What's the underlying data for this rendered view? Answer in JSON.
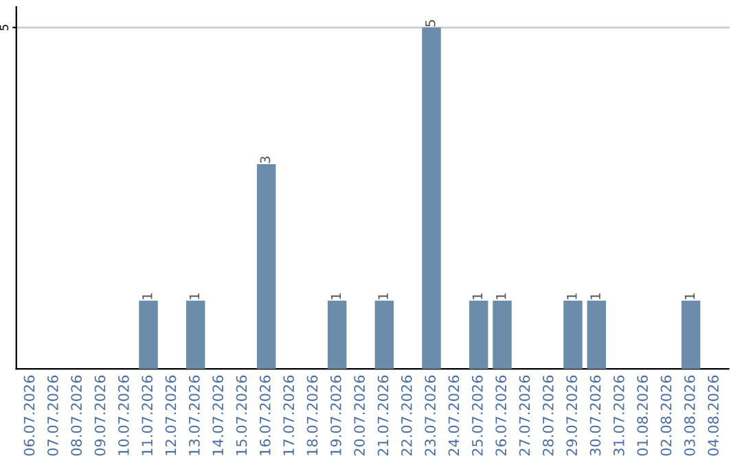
{
  "chart_data": {
    "type": "bar",
    "categories": [
      "06.07.2026",
      "07.07.2026",
      "08.07.2026",
      "09.07.2026",
      "10.07.2026",
      "11.07.2026",
      "12.07.2026",
      "13.07.2026",
      "14.07.2026",
      "15.07.2026",
      "16.07.2026",
      "17.07.2026",
      "18.07.2026",
      "19.07.2026",
      "20.07.2026",
      "21.07.2026",
      "22.07.2026",
      "23.07.2026",
      "24.07.2026",
      "25.07.2026",
      "26.07.2026",
      "27.07.2026",
      "28.07.2026",
      "29.07.2026",
      "30.07.2026",
      "31.07.2026",
      "01.08.2026",
      "02.08.2026",
      "03.08.2026",
      "04.08.2026"
    ],
    "values": [
      0,
      0,
      0,
      0,
      0,
      1,
      0,
      1,
      0,
      0,
      3,
      0,
      0,
      1,
      0,
      1,
      0,
      5,
      0,
      1,
      1,
      0,
      0,
      1,
      1,
      0,
      0,
      0,
      1,
      0
    ],
    "color": "#6b8cab",
    "value_labels": [
      null,
      null,
      null,
      null,
      null,
      "1",
      null,
      "1",
      null,
      null,
      "3",
      null,
      null,
      "1",
      null,
      "1",
      null,
      "5",
      null,
      "1",
      "1",
      null,
      null,
      "1",
      "1",
      null,
      null,
      null,
      "1",
      null
    ],
    "ylim": [
      0,
      5.3
    ],
    "yticks": [
      5
    ],
    "grid": "y"
  }
}
